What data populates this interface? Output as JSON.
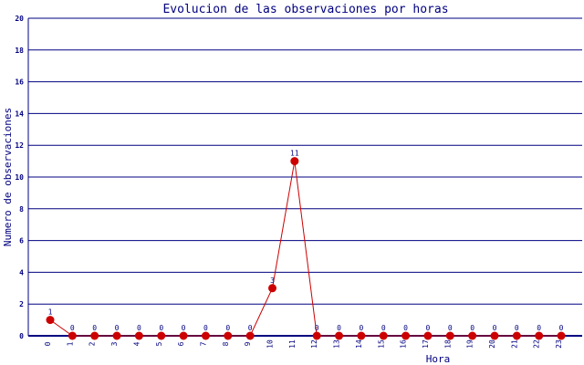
{
  "chart_data": {
    "type": "line",
    "title": "Evolucion de las observaciones por horas",
    "xlabel": "Hora",
    "ylabel": "Numero de observaciones",
    "categories": [
      "0",
      "1",
      "2",
      "3",
      "4",
      "5",
      "6",
      "7",
      "8",
      "9",
      "10",
      "11",
      "12",
      "13",
      "14",
      "15",
      "16",
      "17",
      "18",
      "19",
      "20",
      "21",
      "22",
      "23"
    ],
    "values": [
      1,
      0,
      0,
      0,
      0,
      0,
      0,
      0,
      0,
      0,
      3,
      11,
      0,
      0,
      0,
      0,
      0,
      0,
      0,
      0,
      0,
      0,
      0,
      0
    ],
    "ylim": [
      0,
      20
    ],
    "yticks": [
      0,
      2,
      4,
      6,
      8,
      10,
      12,
      14,
      16,
      18,
      20
    ],
    "grid": true,
    "data_labels": true,
    "colors": {
      "line": "#cc0000",
      "marker": "#cc0000",
      "grid": "#000080",
      "text": "#000080"
    }
  }
}
